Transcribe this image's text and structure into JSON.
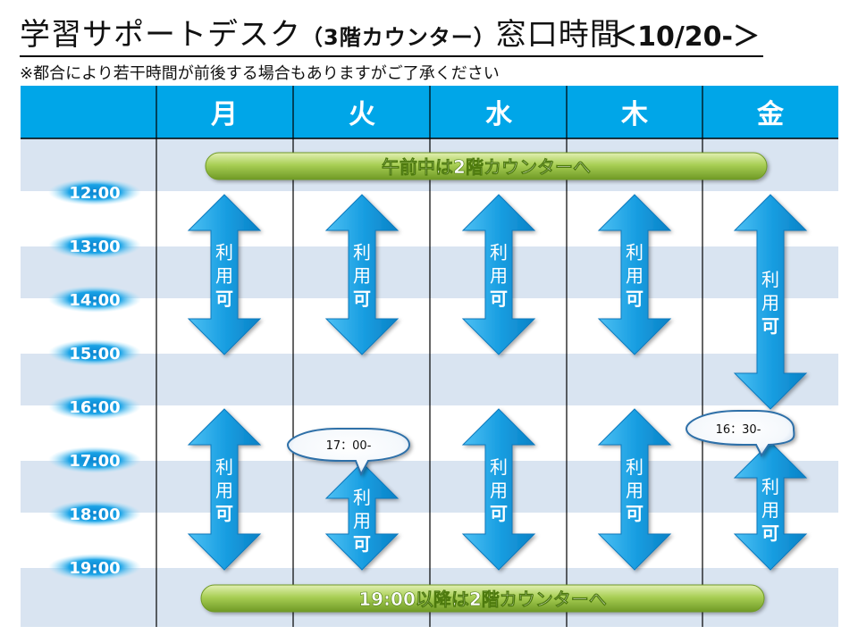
{
  "header": {
    "title_main": "学習サポートデスク",
    "title_paren": "（3階カウンター）",
    "title_tail": "窓口時間",
    "period": "＜10/20-＞",
    "note": "※都合により若干時間が前後する場合もありますがご了承ください"
  },
  "days": [
    "月",
    "火",
    "水",
    "木",
    "金"
  ],
  "times": [
    "12:00",
    "13:00",
    "14:00",
    "15:00",
    "16:00",
    "17:00",
    "18:00",
    "19:00"
  ],
  "banners": {
    "morning": "午前中は2階カウンターへ",
    "evening": "19:00以降は2階カウンターへ"
  },
  "availability_label": [
    "利",
    "用",
    "可"
  ],
  "callouts": {
    "tuesday": "17：00-",
    "friday": "16：30-"
  },
  "colors": {
    "header_blue": "#00a6e8",
    "grid_blue": "#d9e4f1",
    "arrow_blue": "#1e9fe0",
    "banner_green": "#9ec447",
    "time_glow": "#1aa3e6"
  }
}
